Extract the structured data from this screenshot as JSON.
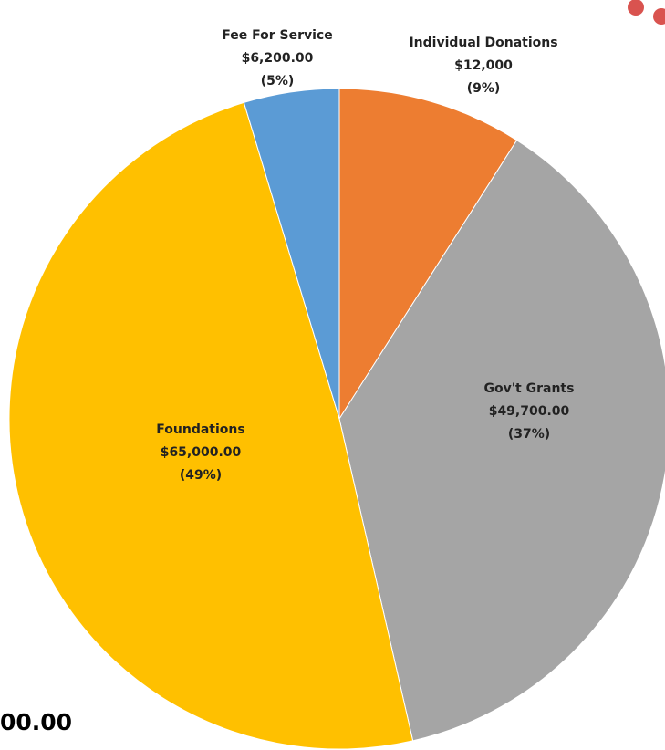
{
  "chart_data": {
    "type": "pie",
    "categories": [
      "Individual Donations",
      "Gov't Grants",
      "Foundations",
      "Fee For Service"
    ],
    "values": [
      12000,
      49700,
      65000,
      6200
    ],
    "value_labels": [
      "$12,000",
      "$49,700.00",
      "$65,000.00",
      "$6,200.00"
    ],
    "percent_labels": [
      "(9%)",
      "(37%)",
      "(49%)",
      "(5%)"
    ],
    "colors": [
      "#ED7D31",
      "#A5A5A5",
      "#FFC000",
      "#5B9BD5"
    ],
    "start_angle_deg": 0,
    "direction": "clockwise"
  },
  "partial_total_text": "00.00",
  "decorations": {
    "dot_color": "#D9534F"
  }
}
